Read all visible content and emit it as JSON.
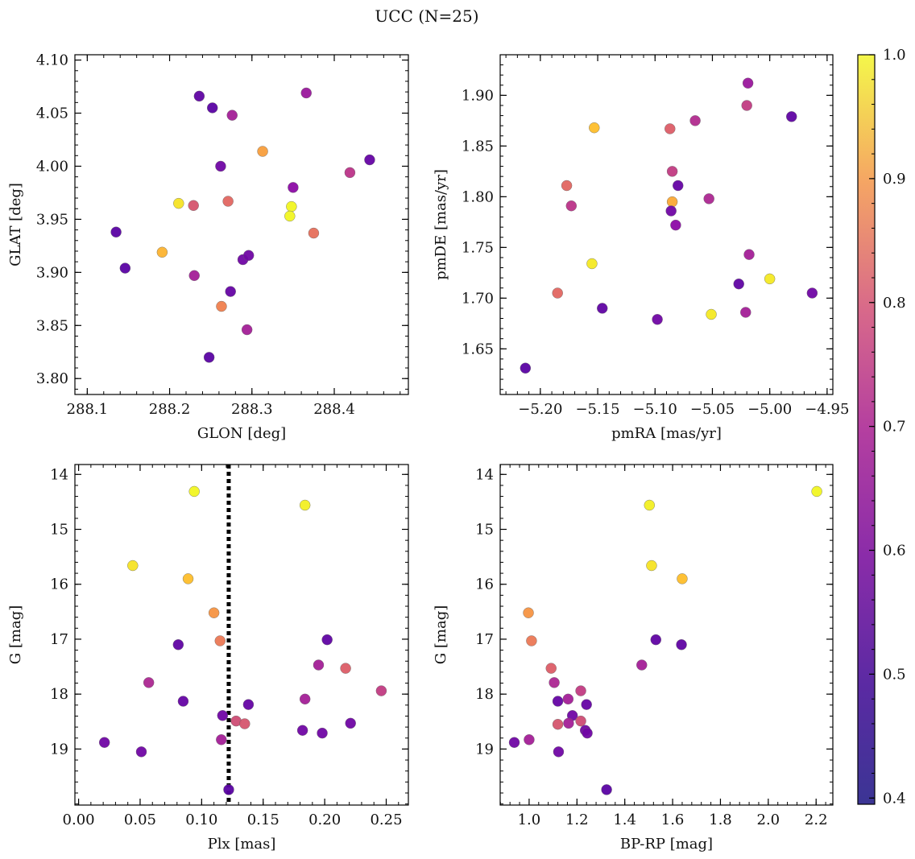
{
  "title": "UCC (N=25)",
  "colorbar": {
    "range": [
      0.395,
      1.0
    ],
    "ticks": [
      "0.4",
      "0.5",
      "0.6",
      "0.7",
      "0.8",
      "0.9",
      "1.0"
    ],
    "colormap": "plasma"
  },
  "chart_data": [
    {
      "type": "scatter",
      "xlabel": "GLON [deg]",
      "ylabel": "GLAT [deg]",
      "xlim": [
        288.085,
        288.49
      ],
      "ylim": [
        3.785,
        4.105
      ],
      "xticks": [
        "288.1",
        "288.2",
        "288.3",
        "288.4"
      ],
      "yticks": [
        "3.80",
        "3.85",
        "3.90",
        "3.95",
        "4.00",
        "4.05",
        "4.10"
      ],
      "points": [
        {
          "x": 288.236,
          "y": 4.066,
          "c": 0.42
        },
        {
          "x": 288.252,
          "y": 4.055,
          "c": 0.41
        },
        {
          "x": 288.276,
          "y": 4.048,
          "c": 0.55
        },
        {
          "x": 288.366,
          "y": 4.069,
          "c": 0.53
        },
        {
          "x": 288.313,
          "y": 4.014,
          "c": 0.84
        },
        {
          "x": 288.262,
          "y": 4.0,
          "c": 0.45
        },
        {
          "x": 288.419,
          "y": 3.994,
          "c": 0.6
        },
        {
          "x": 288.443,
          "y": 4.006,
          "c": 0.43
        },
        {
          "x": 288.35,
          "y": 3.98,
          "c": 0.5
        },
        {
          "x": 288.211,
          "y": 3.965,
          "c": 0.96
        },
        {
          "x": 288.229,
          "y": 3.963,
          "c": 0.68
        },
        {
          "x": 288.271,
          "y": 3.967,
          "c": 0.72
        },
        {
          "x": 288.348,
          "y": 3.962,
          "c": 0.99
        },
        {
          "x": 288.346,
          "y": 3.953,
          "c": 0.99
        },
        {
          "x": 288.375,
          "y": 3.937,
          "c": 0.74
        },
        {
          "x": 288.135,
          "y": 3.938,
          "c": 0.41
        },
        {
          "x": 288.191,
          "y": 3.919,
          "c": 0.88
        },
        {
          "x": 288.146,
          "y": 3.904,
          "c": 0.41
        },
        {
          "x": 288.289,
          "y": 3.912,
          "c": 0.45
        },
        {
          "x": 288.296,
          "y": 3.916,
          "c": 0.45
        },
        {
          "x": 288.23,
          "y": 3.897,
          "c": 0.55
        },
        {
          "x": 288.274,
          "y": 3.882,
          "c": 0.43
        },
        {
          "x": 288.263,
          "y": 3.868,
          "c": 0.78
        },
        {
          "x": 288.294,
          "y": 3.846,
          "c": 0.55
        },
        {
          "x": 288.248,
          "y": 3.82,
          "c": 0.41
        }
      ]
    },
    {
      "type": "scatter",
      "xlabel": "pmRA [mas/yr]",
      "ylabel": "pmDE [mas/yr]",
      "xlim": [
        -5.235,
        -4.945
      ],
      "ylim": [
        1.605,
        1.94
      ],
      "xticks": [
        "−5.20",
        "−5.15",
        "−5.10",
        "−5.05",
        "−5.00",
        "−4.95"
      ],
      "yticks": [
        "1.65",
        "1.70",
        "1.75",
        "1.80",
        "1.85",
        "1.90"
      ],
      "points": [
        {
          "x": -5.019,
          "y": 1.912,
          "c": 0.53
        },
        {
          "x": -5.02,
          "y": 1.89,
          "c": 0.62
        },
        {
          "x": -4.981,
          "y": 1.879,
          "c": 0.42
        },
        {
          "x": -5.153,
          "y": 1.868,
          "c": 0.9
        },
        {
          "x": -5.087,
          "y": 1.867,
          "c": 0.7
        },
        {
          "x": -5.065,
          "y": 1.875,
          "c": 0.58
        },
        {
          "x": -5.085,
          "y": 1.825,
          "c": 0.62
        },
        {
          "x": -5.08,
          "y": 1.811,
          "c": 0.43
        },
        {
          "x": -5.177,
          "y": 1.811,
          "c": 0.72
        },
        {
          "x": -5.085,
          "y": 1.795,
          "c": 0.86
        },
        {
          "x": -5.053,
          "y": 1.798,
          "c": 0.57
        },
        {
          "x": -5.173,
          "y": 1.791,
          "c": 0.6
        },
        {
          "x": -5.086,
          "y": 1.786,
          "c": 0.45
        },
        {
          "x": -5.082,
          "y": 1.772,
          "c": 0.5
        },
        {
          "x": -5.155,
          "y": 1.734,
          "c": 0.97
        },
        {
          "x": -5.018,
          "y": 1.743,
          "c": 0.55
        },
        {
          "x": -5.0,
          "y": 1.719,
          "c": 0.97
        },
        {
          "x": -5.027,
          "y": 1.714,
          "c": 0.42
        },
        {
          "x": -4.963,
          "y": 1.705,
          "c": 0.45
        },
        {
          "x": -5.185,
          "y": 1.705,
          "c": 0.72
        },
        {
          "x": -5.146,
          "y": 1.69,
          "c": 0.42
        },
        {
          "x": -5.051,
          "y": 1.684,
          "c": 0.97
        },
        {
          "x": -5.021,
          "y": 1.686,
          "c": 0.55
        },
        {
          "x": -5.098,
          "y": 1.679,
          "c": 0.45
        },
        {
          "x": -5.213,
          "y": 1.631,
          "c": 0.41
        }
      ]
    },
    {
      "type": "scatter",
      "xlabel": "Plx [mas]",
      "ylabel": "G [mag]",
      "xlim": [
        -0.003,
        0.268
      ],
      "ylim": [
        20.02,
        13.82
      ],
      "yinverted": true,
      "xticks": [
        "0.00",
        "0.05",
        "0.10",
        "0.15",
        "0.20",
        "0.25"
      ],
      "yticks": [
        "14",
        "15",
        "16",
        "17",
        "18",
        "19"
      ],
      "vline": {
        "x": 0.122,
        "style": "dotted"
      },
      "points": [
        {
          "x": 0.094,
          "y": 14.31,
          "c": 0.99
        },
        {
          "x": 0.184,
          "y": 14.56,
          "c": 0.98
        },
        {
          "x": 0.044,
          "y": 15.66,
          "c": 0.96
        },
        {
          "x": 0.089,
          "y": 15.9,
          "c": 0.9
        },
        {
          "x": 0.11,
          "y": 16.52,
          "c": 0.82
        },
        {
          "x": 0.115,
          "y": 17.03,
          "c": 0.76
        },
        {
          "x": 0.081,
          "y": 17.1,
          "c": 0.42
        },
        {
          "x": 0.202,
          "y": 17.01,
          "c": 0.42
        },
        {
          "x": 0.195,
          "y": 17.47,
          "c": 0.55
        },
        {
          "x": 0.217,
          "y": 17.53,
          "c": 0.7
        },
        {
          "x": 0.057,
          "y": 17.79,
          "c": 0.57
        },
        {
          "x": 0.246,
          "y": 17.94,
          "c": 0.62
        },
        {
          "x": 0.085,
          "y": 18.13,
          "c": 0.43
        },
        {
          "x": 0.184,
          "y": 18.09,
          "c": 0.55
        },
        {
          "x": 0.138,
          "y": 18.19,
          "c": 0.43
        },
        {
          "x": 0.117,
          "y": 18.39,
          "c": 0.45
        },
        {
          "x": 0.128,
          "y": 18.49,
          "c": 0.66
        },
        {
          "x": 0.135,
          "y": 18.54,
          "c": 0.68
        },
        {
          "x": 0.221,
          "y": 18.53,
          "c": 0.45
        },
        {
          "x": 0.182,
          "y": 18.66,
          "c": 0.45
        },
        {
          "x": 0.198,
          "y": 18.71,
          "c": 0.45
        },
        {
          "x": 0.116,
          "y": 18.83,
          "c": 0.55
        },
        {
          "x": 0.021,
          "y": 18.88,
          "c": 0.45
        },
        {
          "x": 0.051,
          "y": 19.05,
          "c": 0.45
        },
        {
          "x": 0.122,
          "y": 19.74,
          "c": 0.41
        }
      ]
    },
    {
      "type": "scatter",
      "xlabel": "BP-RP [mag]",
      "ylabel": "G [mag]",
      "xlim": [
        0.879,
        2.27
      ],
      "ylim": [
        20.02,
        13.82
      ],
      "yinverted": true,
      "xticks": [
        "1.0",
        "1.2",
        "1.4",
        "1.6",
        "1.8",
        "2.0",
        "2.2"
      ],
      "yticks": [
        "14",
        "15",
        "16",
        "17",
        "18",
        "19"
      ],
      "points": [
        {
          "x": 2.203,
          "y": 14.31,
          "c": 0.99
        },
        {
          "x": 1.503,
          "y": 14.56,
          "c": 0.98
        },
        {
          "x": 1.512,
          "y": 15.66,
          "c": 0.96
        },
        {
          "x": 1.64,
          "y": 15.9,
          "c": 0.9
        },
        {
          "x": 0.997,
          "y": 16.52,
          "c": 0.82
        },
        {
          "x": 1.01,
          "y": 17.03,
          "c": 0.76
        },
        {
          "x": 1.53,
          "y": 17.01,
          "c": 0.42
        },
        {
          "x": 1.637,
          "y": 17.1,
          "c": 0.42
        },
        {
          "x": 1.471,
          "y": 17.47,
          "c": 0.55
        },
        {
          "x": 1.092,
          "y": 17.53,
          "c": 0.7
        },
        {
          "x": 1.105,
          "y": 17.79,
          "c": 0.57
        },
        {
          "x": 1.216,
          "y": 17.94,
          "c": 0.62
        },
        {
          "x": 1.163,
          "y": 18.09,
          "c": 0.55
        },
        {
          "x": 1.12,
          "y": 18.13,
          "c": 0.43
        },
        {
          "x": 1.24,
          "y": 18.19,
          "c": 0.43
        },
        {
          "x": 1.181,
          "y": 18.39,
          "c": 0.45
        },
        {
          "x": 1.216,
          "y": 18.49,
          "c": 0.66
        },
        {
          "x": 1.165,
          "y": 18.53,
          "c": 0.55
        },
        {
          "x": 1.12,
          "y": 18.55,
          "c": 0.68
        },
        {
          "x": 1.235,
          "y": 18.66,
          "c": 0.45
        },
        {
          "x": 1.243,
          "y": 18.71,
          "c": 0.45
        },
        {
          "x": 1.0,
          "y": 18.83,
          "c": 0.55
        },
        {
          "x": 0.938,
          "y": 18.88,
          "c": 0.45
        },
        {
          "x": 1.123,
          "y": 19.05,
          "c": 0.45
        },
        {
          "x": 1.324,
          "y": 19.74,
          "c": 0.41
        }
      ]
    }
  ]
}
